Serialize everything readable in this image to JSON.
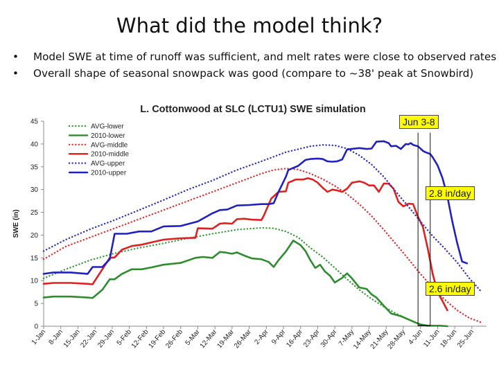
{
  "slide": {
    "title": "What did the model think?",
    "bullets": [
      "Model SWE at time of runoff was sufficient, and melt rates were close to observed rates",
      "Overall shape of seasonal snowpack was good (compare to ~38' peak at Snowbird)"
    ],
    "bullet_char": "•"
  },
  "chart_data": {
    "type": "line",
    "title": "L. Cottonwood at SLC (LCTU1) SWE simulation",
    "xlabel": "",
    "ylabel": "SWE (in)",
    "ylim": [
      0,
      45
    ],
    "yticks": [
      0,
      5,
      10,
      15,
      20,
      25,
      30,
      35,
      40,
      45
    ],
    "xlim": [
      1,
      182
    ],
    "x_unit": "day of year (tick labels are dates)",
    "xtick_labels": [
      "1-Jan",
      "8-Jan",
      "15-Jan",
      "22-Jan",
      "29-Jan",
      "5-Feb",
      "12-Feb",
      "19-Feb",
      "26-Feb",
      "5-Mar",
      "12-Mar",
      "19-Mar",
      "26-Mar",
      "2-Apr",
      "9-Apr",
      "16-Apr",
      "23-Apr",
      "30-Apr",
      "7-May",
      "14-May",
      "21-May",
      "28-May",
      "4-Jun",
      "11-Jun",
      "18-Jun",
      "25-Jun"
    ],
    "grid": false,
    "legend_position": "top-left",
    "series": [
      {
        "name": "AVG-lower",
        "color": "#3a9a3a",
        "style": "dotted",
        "x": [
          1,
          10,
          20,
          30,
          40,
          50,
          60,
          70,
          80,
          90,
          95,
          100,
          105,
          110,
          115,
          120,
          125,
          130,
          135,
          140,
          145,
          150,
          155,
          158
        ],
        "y": [
          10.5,
          12.5,
          14.5,
          16,
          17.2,
          18.2,
          19.3,
          20.3,
          21.2,
          21.6,
          21.5,
          20.8,
          19.5,
          17.2,
          15.2,
          12.8,
          10.3,
          8,
          6,
          4.3,
          2.8,
          1.5,
          0.4,
          0
        ]
      },
      {
        "name": "2010-lower",
        "color": "#2e8b2e",
        "style": "solid",
        "x": [
          1,
          5,
          12,
          19,
          21,
          25,
          28,
          30,
          33,
          37,
          41,
          45,
          50,
          57,
          63,
          66,
          70,
          73,
          75,
          78,
          80,
          83,
          86,
          90,
          93,
          95,
          97,
          100,
          103,
          106,
          108,
          110,
          112,
          114,
          116,
          118,
          120,
          123,
          125,
          127,
          130,
          133,
          135,
          137,
          140,
          143,
          147,
          150,
          153,
          155,
          158,
          163,
          166
        ],
        "y": [
          6.3,
          6.5,
          6.5,
          6.3,
          6.2,
          8,
          10.3,
          10.3,
          11.5,
          12.5,
          12.5,
          12.9,
          13.5,
          13.9,
          15,
          15.2,
          15,
          16.3,
          16.2,
          15.9,
          16.2,
          15.5,
          14.9,
          14.7,
          14.1,
          13,
          14.5,
          16.4,
          18.8,
          17.8,
          16.5,
          14.5,
          12.8,
          13.5,
          12,
          11.1,
          9.6,
          10.6,
          11.6,
          10.5,
          8.5,
          8.2,
          7,
          6.3,
          4.5,
          2.8,
          2.2,
          1.5,
          0.8,
          0.4,
          0.1,
          0.1,
          0
        ]
      },
      {
        "name": "AVG-middle",
        "color": "#e03030",
        "style": "dotted",
        "x": [
          1,
          10,
          20,
          30,
          40,
          50,
          60,
          70,
          80,
          90,
          95,
          100,
          105,
          110,
          115,
          120,
          125,
          130,
          135,
          140,
          145,
          150,
          155,
          160,
          165,
          170,
          175,
          180
        ],
        "y": [
          14.7,
          17.5,
          19.5,
          21.5,
          23.5,
          25.5,
          27.5,
          29.5,
          31.5,
          33.5,
          34.3,
          34.6,
          34.4,
          33.5,
          32.3,
          30.8,
          29,
          26.8,
          24.2,
          21.2,
          18,
          14.8,
          11.5,
          8.5,
          5.8,
          3.5,
          1.8,
          0.8
        ]
      },
      {
        "name": "2010-middle",
        "color": "#e02020",
        "style": "solid",
        "x": [
          1,
          5,
          12,
          19,
          21,
          25,
          28,
          30,
          33,
          37,
          41,
          45,
          50,
          57,
          63,
          64,
          70,
          73,
          75,
          78,
          80,
          83,
          86,
          90,
          91,
          94,
          97,
          100,
          101,
          104,
          107,
          109,
          111,
          113,
          115,
          117,
          119,
          121,
          123,
          125,
          127,
          130,
          132,
          134,
          136,
          138,
          140,
          142,
          144,
          146,
          148,
          150,
          152,
          154,
          156,
          158,
          160,
          162,
          164,
          166
        ],
        "y": [
          9.3,
          9.5,
          9.5,
          9.3,
          9.2,
          12.5,
          15,
          15.1,
          16.8,
          17.6,
          17.9,
          18.4,
          19,
          19.3,
          19.4,
          21.5,
          21.4,
          22.5,
          22.6,
          22.5,
          23.5,
          23.6,
          23.4,
          23.3,
          24.3,
          28,
          29.5,
          29.6,
          31.5,
          32.2,
          32.2,
          32.5,
          32.2,
          31.5,
          30.4,
          29.5,
          30,
          29.8,
          29.5,
          30.2,
          31.5,
          31.8,
          31.5,
          30.9,
          30.9,
          29.5,
          31.3,
          31.3,
          30.2,
          27.3,
          26.3,
          26.9,
          26.8,
          24,
          21.8,
          17,
          11.5,
          7.5,
          5.5,
          3.5
        ]
      },
      {
        "name": "AVG-upper",
        "color": "#3030c0",
        "style": "dotted",
        "x": [
          1,
          10,
          20,
          30,
          40,
          50,
          60,
          70,
          80,
          90,
          100,
          110,
          115,
          120,
          125,
          130,
          135,
          140,
          145,
          150,
          155,
          160,
          165,
          170,
          175,
          180
        ],
        "y": [
          16.5,
          19,
          21.3,
          23.3,
          25.5,
          27.7,
          30,
          32,
          34.3,
          36.2,
          38.2,
          39.5,
          39.8,
          39.7,
          39,
          37.5,
          35.5,
          32.8,
          29.5,
          26.3,
          23,
          19.8,
          17,
          14,
          10.5,
          7.5
        ]
      },
      {
        "name": "2010-upper",
        "color": "#2020c0",
        "style": "solid",
        "x": [
          1,
          5,
          12,
          19,
          21,
          25,
          28,
          30,
          35,
          40,
          45,
          50,
          57,
          64,
          70,
          73,
          76,
          80,
          85,
          90,
          93,
          95,
          97,
          100,
          101,
          105,
          108,
          110,
          113,
          115,
          117,
          119,
          121,
          123,
          125,
          130,
          133,
          135,
          137,
          140,
          142,
          143,
          145,
          147,
          149,
          150,
          151,
          152,
          154,
          156,
          157,
          159,
          160,
          162,
          164,
          166,
          168,
          170,
          172,
          174
        ],
        "y": [
          11.5,
          11.8,
          11.8,
          11.5,
          13,
          13,
          14.7,
          20.3,
          20.3,
          20.8,
          20.8,
          21.9,
          22,
          23,
          24.8,
          25.5,
          25.6,
          26.5,
          26.6,
          26.8,
          26.8,
          27,
          29.5,
          32.8,
          34.3,
          35.2,
          36.5,
          36.7,
          36.8,
          36.7,
          36.2,
          36.1,
          36.2,
          36.6,
          38.8,
          39.1,
          38.9,
          39,
          40.5,
          40.6,
          40.2,
          39.5,
          39.6,
          38.9,
          40,
          39.9,
          40.2,
          39.8,
          39.5,
          38.5,
          38.2,
          37.8,
          37.1,
          35.3,
          32.5,
          28.5,
          23,
          18.3,
          14.2,
          13.8
        ]
      }
    ],
    "annotations": [
      {
        "text": "Jun 3-8",
        "type": "callout-top"
      },
      {
        "text": "2.8 in/day",
        "type": "callout-middle"
      },
      {
        "text": "2.6 in/day",
        "type": "callout-lower"
      }
    ],
    "marker_lines_day": [
      154,
      159
    ],
    "callout_color": "#ffff00"
  }
}
